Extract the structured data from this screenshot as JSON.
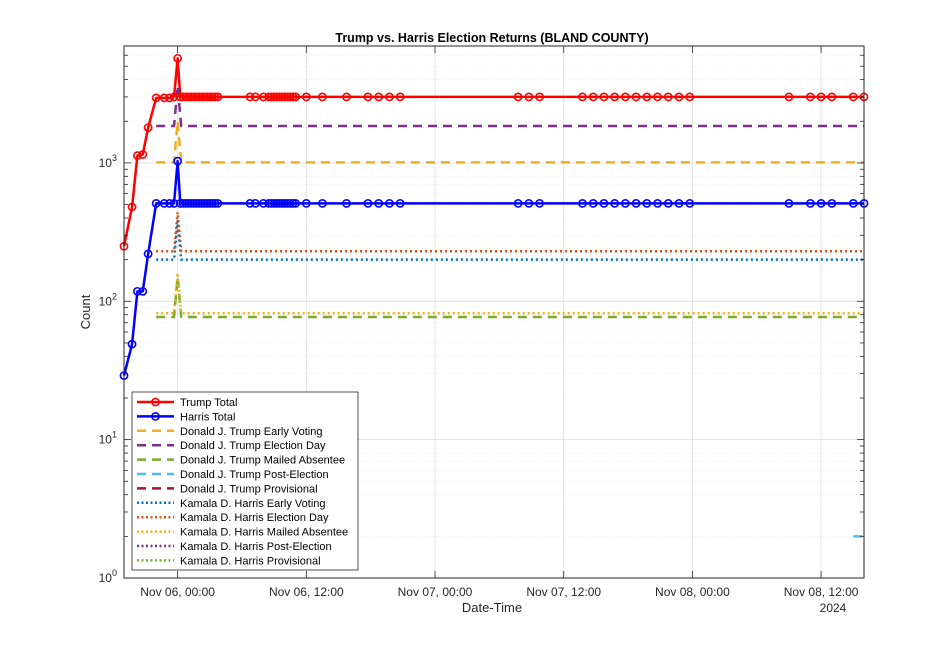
{
  "chart_data": {
    "type": "line",
    "title": "Trump vs. Harris Election Returns (BLAND COUNTY)",
    "xlabel": "Date-Time",
    "ylabel": "Count",
    "yscale": "log",
    "ylim": [
      1,
      7000
    ],
    "xlim": [
      "2024-11-05 19:00",
      "2024-11-08 16:00"
    ],
    "x_ticks": [
      {
        "t": "2024-11-06 00:00",
        "label": "Nov 06, 00:00"
      },
      {
        "t": "2024-11-06 12:00",
        "label": "Nov 06, 12:00"
      },
      {
        "t": "2024-11-07 00:00",
        "label": "Nov 07, 00:00"
      },
      {
        "t": "2024-11-07 12:00",
        "label": "Nov 07, 12:00"
      },
      {
        "t": "2024-11-08 00:00",
        "label": "Nov 08, 00:00"
      },
      {
        "t": "2024-11-08 12:00",
        "label": "Nov 08, 12:00"
      }
    ],
    "x_year_label": "2024",
    "y_ticks": [
      {
        "v": 1,
        "base": "10",
        "exp": "0"
      },
      {
        "v": 10,
        "base": "10",
        "exp": "1"
      },
      {
        "v": 100,
        "base": "10",
        "exp": "2"
      },
      {
        "v": 1000,
        "base": "10",
        "exp": "3"
      }
    ],
    "grid": true,
    "legend_position": "bottom-left",
    "series": [
      {
        "name": "Trump Total",
        "color": "#ff0000",
        "style": "solid",
        "width": 2.5,
        "marker": "circle",
        "x": [
          "2024-11-05 19:00",
          "2024-11-05 19:45",
          "2024-11-05 20:15",
          "2024-11-05 20:45",
          "2024-11-05 21:15",
          "2024-11-05 22:00",
          "2024-11-05 22:45",
          "2024-11-05 23:15",
          "2024-11-05 23:40",
          "2024-11-06 00:00",
          "2024-11-06 00:15",
          "2024-11-06 00:30",
          "2024-11-06 00:45",
          "2024-11-06 01:00",
          "2024-11-06 01:15",
          "2024-11-06 01:30",
          "2024-11-06 01:45",
          "2024-11-06 02:00",
          "2024-11-06 02:15",
          "2024-11-06 02:30",
          "2024-11-06 02:45",
          "2024-11-06 03:00",
          "2024-11-06 03:15",
          "2024-11-06 03:30",
          "2024-11-06 03:45",
          "2024-11-06 06:45",
          "2024-11-06 07:15",
          "2024-11-06 08:00",
          "2024-11-06 08:30",
          "2024-11-06 08:45",
          "2024-11-06 09:00",
          "2024-11-06 09:15",
          "2024-11-06 09:30",
          "2024-11-06 09:45",
          "2024-11-06 10:00",
          "2024-11-06 10:15",
          "2024-11-06 10:30",
          "2024-11-06 10:45",
          "2024-11-06 11:00",
          "2024-11-06 12:00",
          "2024-11-06 13:30",
          "2024-11-06 15:45",
          "2024-11-06 17:45",
          "2024-11-06 18:45",
          "2024-11-06 19:45",
          "2024-11-06 20:45",
          "2024-11-07 07:45",
          "2024-11-07 08:45",
          "2024-11-07 09:45",
          "2024-11-07 13:45",
          "2024-11-07 14:45",
          "2024-11-07 15:45",
          "2024-11-07 16:45",
          "2024-11-07 17:45",
          "2024-11-07 18:45",
          "2024-11-07 19:45",
          "2024-11-07 20:45",
          "2024-11-07 21:45",
          "2024-11-07 22:45",
          "2024-11-07 23:45",
          "2024-11-08 09:00",
          "2024-11-08 11:00",
          "2024-11-08 12:00",
          "2024-11-08 13:00",
          "2024-11-08 15:00",
          "2024-11-08 16:00"
        ],
        "y": [
          250,
          480,
          1130,
          1150,
          1800,
          2950,
          2950,
          2950,
          3000,
          5700,
          3000,
          3000,
          3000,
          3000,
          3000,
          3000,
          3000,
          3000,
          3000,
          3000,
          3000,
          3000,
          3000,
          3000,
          3000,
          3000,
          3000,
          3000,
          3000,
          3000,
          3000,
          3000,
          3000,
          3000,
          3000,
          3000,
          3000,
          3000,
          3000,
          3000,
          3000,
          3000,
          3000,
          3000,
          3000,
          3000,
          3000,
          3000,
          3000,
          3000,
          3000,
          3000,
          3000,
          3000,
          3000,
          3000,
          3000,
          3000,
          3000,
          3000,
          3000,
          3000,
          3000,
          3000,
          3000,
          3000
        ]
      },
      {
        "name": "Harris Total",
        "color": "#0000ff",
        "style": "solid",
        "width": 2.5,
        "marker": "circle",
        "x": [
          "2024-11-05 19:00",
          "2024-11-05 19:45",
          "2024-11-05 20:15",
          "2024-11-05 20:45",
          "2024-11-05 21:15",
          "2024-11-05 22:00",
          "2024-11-05 22:45",
          "2024-11-05 23:15",
          "2024-11-05 23:40",
          "2024-11-06 00:00",
          "2024-11-06 00:15",
          "2024-11-06 00:30",
          "2024-11-06 00:45",
          "2024-11-06 01:00",
          "2024-11-06 01:15",
          "2024-11-06 01:30",
          "2024-11-06 01:45",
          "2024-11-06 02:00",
          "2024-11-06 02:15",
          "2024-11-06 02:30",
          "2024-11-06 02:45",
          "2024-11-06 03:00",
          "2024-11-06 03:15",
          "2024-11-06 03:30",
          "2024-11-06 03:45",
          "2024-11-06 06:45",
          "2024-11-06 07:15",
          "2024-11-06 08:00",
          "2024-11-06 08:30",
          "2024-11-06 08:45",
          "2024-11-06 09:00",
          "2024-11-06 09:15",
          "2024-11-06 09:30",
          "2024-11-06 09:45",
          "2024-11-06 10:00",
          "2024-11-06 10:15",
          "2024-11-06 10:30",
          "2024-11-06 10:45",
          "2024-11-06 11:00",
          "2024-11-06 12:00",
          "2024-11-06 13:30",
          "2024-11-06 15:45",
          "2024-11-06 17:45",
          "2024-11-06 18:45",
          "2024-11-06 19:45",
          "2024-11-06 20:45",
          "2024-11-07 07:45",
          "2024-11-07 08:45",
          "2024-11-07 09:45",
          "2024-11-07 13:45",
          "2024-11-07 14:45",
          "2024-11-07 15:45",
          "2024-11-07 16:45",
          "2024-11-07 17:45",
          "2024-11-07 18:45",
          "2024-11-07 19:45",
          "2024-11-07 20:45",
          "2024-11-07 21:45",
          "2024-11-07 22:45",
          "2024-11-07 23:45",
          "2024-11-08 09:00",
          "2024-11-08 11:00",
          "2024-11-08 12:00",
          "2024-11-08 13:00",
          "2024-11-08 15:00",
          "2024-11-08 16:00"
        ],
        "y": [
          29,
          49,
          118,
          118,
          220,
          510,
          510,
          510,
          510,
          1030,
          510,
          510,
          510,
          510,
          510,
          510,
          510,
          510,
          510,
          510,
          510,
          510,
          510,
          510,
          510,
          510,
          510,
          510,
          510,
          510,
          510,
          510,
          510,
          510,
          510,
          510,
          510,
          510,
          510,
          510,
          510,
          510,
          510,
          510,
          510,
          510,
          510,
          510,
          510,
          510,
          510,
          510,
          510,
          510,
          510,
          510,
          510,
          510,
          510,
          510,
          510,
          510,
          510,
          510,
          510,
          510
        ]
      },
      {
        "name": "Donald J. Trump Early Voting",
        "color": "#edb120",
        "style": "dashed",
        "width": 2.5,
        "x": [
          "2024-11-05 22:00",
          "2024-11-05 23:40",
          "2024-11-06 00:00",
          "2024-11-06 00:20",
          "2024-11-08 16:00"
        ],
        "y": [
          1010,
          1010,
          2000,
          1010,
          1010
        ]
      },
      {
        "name": "Donald J. Trump Election Day",
        "color": "#7e2f8e",
        "style": "dashed",
        "width": 2.5,
        "x": [
          "2024-11-05 22:00",
          "2024-11-05 23:40",
          "2024-11-06 00:00",
          "2024-11-06 00:20",
          "2024-11-08 16:00"
        ],
        "y": [
          1850,
          1850,
          3600,
          1850,
          1850
        ]
      },
      {
        "name": "Donald J. Trump Mailed Absentee",
        "color": "#77ac30",
        "style": "dashed",
        "width": 2.5,
        "x": [
          "2024-11-05 22:00",
          "2024-11-05 23:40",
          "2024-11-06 00:00",
          "2024-11-06 00:20",
          "2024-11-08 16:00"
        ],
        "y": [
          77,
          77,
          150,
          77,
          77
        ]
      },
      {
        "name": "Donald J. Trump Post-Election",
        "color": "#4dbeee",
        "style": "dashed",
        "width": 2.5,
        "x": [
          "2024-11-08 15:00",
          "2024-11-08 16:00"
        ],
        "y": [
          2,
          2
        ]
      },
      {
        "name": "Donald J. Trump Provisional",
        "color": "#a2142f",
        "style": "dashed",
        "width": 2.5,
        "x": [],
        "y": []
      },
      {
        "name": "Kamala D. Harris Early Voting",
        "color": "#0072bd",
        "style": "dotted",
        "width": 2.5,
        "x": [
          "2024-11-05 22:00",
          "2024-11-05 23:40",
          "2024-11-06 00:00",
          "2024-11-06 00:20",
          "2024-11-08 16:00"
        ],
        "y": [
          200,
          200,
          380,
          200,
          200
        ]
      },
      {
        "name": "Kamala D. Harris Election Day",
        "color": "#d95319",
        "style": "dotted",
        "width": 2.5,
        "x": [
          "2024-11-05 22:00",
          "2024-11-05 23:40",
          "2024-11-06 00:00",
          "2024-11-06 00:20",
          "2024-11-08 16:00"
        ],
        "y": [
          230,
          230,
          440,
          230,
          230
        ]
      },
      {
        "name": "Kamala D. Harris Mailed Absentee",
        "color": "#edb120",
        "style": "dotted",
        "width": 2.5,
        "x": [
          "2024-11-05 22:00",
          "2024-11-05 23:40",
          "2024-11-06 00:00",
          "2024-11-06 00:20",
          "2024-11-08 16:00"
        ],
        "y": [
          82,
          82,
          160,
          82,
          82
        ]
      },
      {
        "name": "Kamala D. Harris Post-Election",
        "color": "#7e2f8e",
        "style": "dotted",
        "width": 2.5,
        "x": [],
        "y": []
      },
      {
        "name": "Kamala D. Harris Provisional",
        "color": "#77ac30",
        "style": "dotted",
        "width": 2.5,
        "x": [],
        "y": []
      }
    ]
  }
}
